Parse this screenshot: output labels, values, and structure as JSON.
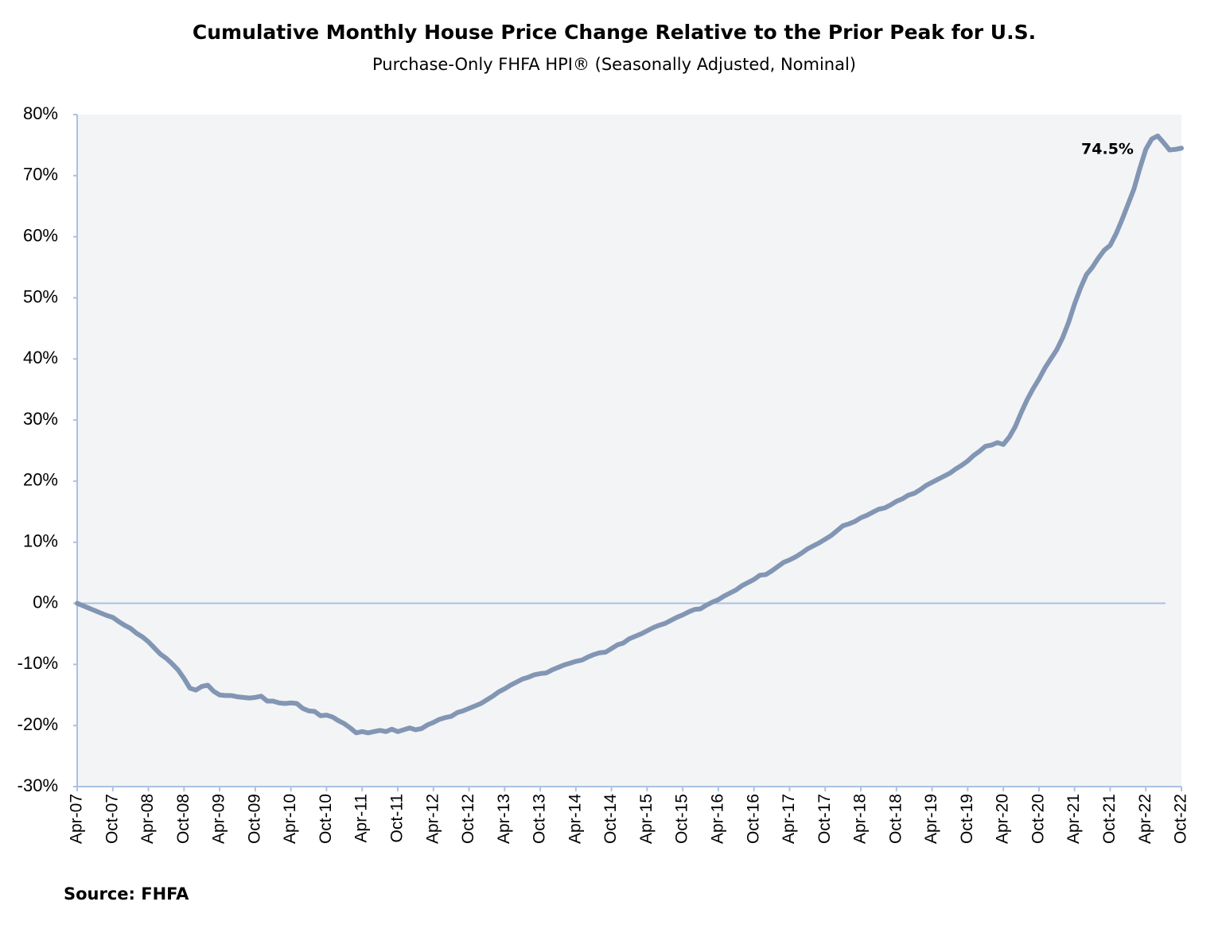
{
  "chart_data": {
    "type": "line",
    "title": "Cumulative Monthly House Price Change Relative to the Prior Peak for U.S.",
    "subtitle": "Purchase-Only FHFA HPI® (Seasonally Adjusted, Nominal)",
    "source": "Source: FHFA",
    "annotation": "74.5%",
    "categories": [
      "Apr-07",
      null,
      null,
      null,
      null,
      null,
      "Oct-07",
      null,
      null,
      null,
      null,
      null,
      "Apr-08",
      null,
      null,
      null,
      null,
      null,
      "Oct-08",
      null,
      null,
      null,
      null,
      null,
      "Apr-09",
      null,
      null,
      null,
      null,
      null,
      "Oct-09",
      null,
      null,
      null,
      null,
      null,
      "Apr-10",
      null,
      null,
      null,
      null,
      null,
      "Oct-10",
      null,
      null,
      null,
      null,
      null,
      "Apr-11",
      null,
      null,
      null,
      null,
      null,
      "Oct-11",
      null,
      null,
      null,
      null,
      null,
      "Apr-12",
      null,
      null,
      null,
      null,
      null,
      "Oct-12",
      null,
      null,
      null,
      null,
      null,
      "Apr-13",
      null,
      null,
      null,
      null,
      null,
      "Oct-13",
      null,
      null,
      null,
      null,
      null,
      "Apr-14",
      null,
      null,
      null,
      null,
      null,
      "Oct-14",
      null,
      null,
      null,
      null,
      null,
      "Apr-15",
      null,
      null,
      null,
      null,
      null,
      "Oct-15",
      null,
      null,
      null,
      null,
      null,
      "Apr-16",
      null,
      null,
      null,
      null,
      null,
      "Oct-16",
      null,
      null,
      null,
      null,
      null,
      "Apr-17",
      null,
      null,
      null,
      null,
      null,
      "Oct-17",
      null,
      null,
      null,
      null,
      null,
      "Apr-18",
      null,
      null,
      null,
      null,
      null,
      "Oct-18",
      null,
      null,
      null,
      null,
      null,
      "Apr-19",
      null,
      null,
      null,
      null,
      null,
      "Oct-19",
      null,
      null,
      null,
      null,
      null,
      "Apr-20",
      null,
      null,
      null,
      null,
      null,
      "Oct-20",
      null,
      null,
      null,
      null,
      null,
      "Apr-21",
      null,
      null,
      null,
      null,
      null,
      "Oct-21",
      null,
      null,
      null,
      null,
      null,
      "Apr-22",
      null,
      null,
      null,
      null,
      null,
      "Oct-22"
    ],
    "values": [
      0,
      -0.4,
      -0.8,
      -1.2,
      -1.6,
      -2.0,
      -2.3,
      -3.0,
      -3.6,
      -4.1,
      -4.9,
      -5.5,
      -6.3,
      -7.3,
      -8.3,
      -9.0,
      -9.9,
      -10.9,
      -12.3,
      -13.9,
      -14.2,
      -13.6,
      -13.4,
      -14.4,
      -15.0,
      -15.1,
      -15.1,
      -15.3,
      -15.4,
      -15.5,
      -15.4,
      -15.2,
      -16.0,
      -16.0,
      -16.3,
      -16.4,
      -16.3,
      -16.4,
      -17.2,
      -17.6,
      -17.7,
      -18.4,
      -18.3,
      -18.6,
      -19.2,
      -19.7,
      -20.4,
      -21.2,
      -21.0,
      -21.2,
      -21.0,
      -20.8,
      -21.0,
      -20.6,
      -21.0,
      -20.7,
      -20.4,
      -20.7,
      -20.5,
      -19.9,
      -19.5,
      -19.0,
      -18.7,
      -18.5,
      -17.9,
      -17.6,
      -17.2,
      -16.8,
      -16.4,
      -15.8,
      -15.2,
      -14.5,
      -14.0,
      -13.4,
      -12.9,
      -12.4,
      -12.1,
      -11.7,
      -11.5,
      -11.4,
      -10.9,
      -10.5,
      -10.1,
      -9.8,
      -9.5,
      -9.3,
      -8.8,
      -8.4,
      -8.1,
      -8.0,
      -7.4,
      -6.8,
      -6.5,
      -5.8,
      -5.4,
      -5.0,
      -4.5,
      -4.0,
      -3.6,
      -3.3,
      -2.8,
      -2.3,
      -1.9,
      -1.4,
      -1.0,
      -0.9,
      -0.3,
      0.2,
      0.6,
      1.2,
      1.7,
      2.2,
      2.9,
      3.4,
      3.9,
      4.6,
      4.7,
      5.3,
      6.0,
      6.7,
      7.1,
      7.6,
      8.2,
      8.9,
      9.4,
      9.9,
      10.5,
      11.1,
      11.9,
      12.7,
      13.0,
      13.4,
      14.0,
      14.4,
      14.9,
      15.4,
      15.6,
      16.1,
      16.7,
      17.1,
      17.7,
      18.0,
      18.6,
      19.3,
      19.8,
      20.3,
      20.8,
      21.3,
      22.0,
      22.6,
      23.3,
      24.2,
      24.9,
      25.7,
      25.9,
      26.3,
      26.0,
      27.2,
      28.9,
      31.2,
      33.3,
      35.1,
      36.7,
      38.5,
      40.0,
      41.5,
      43.5,
      46.0,
      49.0,
      51.6,
      53.8,
      55.0,
      56.5,
      57.8,
      58.6,
      60.5,
      62.8,
      65.3,
      67.8,
      71.2,
      74.3,
      76.0,
      76.5,
      75.4,
      74.2,
      74.3,
      74.5
    ],
    "color": "#8296b4",
    "reference_line": 0,
    "ylim": [
      -30,
      80
    ],
    "yticks": [
      {
        "value": -30,
        "label": "-30%"
      },
      {
        "value": -20,
        "label": "-20%"
      },
      {
        "value": -10,
        "label": "-10%"
      },
      {
        "value": 0,
        "label": "0%"
      },
      {
        "value": 10,
        "label": "10%"
      },
      {
        "value": 20,
        "label": "20%"
      },
      {
        "value": 30,
        "label": "30%"
      },
      {
        "value": 40,
        "label": "40%"
      },
      {
        "value": 50,
        "label": "50%"
      },
      {
        "value": 60,
        "label": "60%"
      },
      {
        "value": 70,
        "label": "70%"
      },
      {
        "value": 80,
        "label": "80%"
      }
    ]
  }
}
